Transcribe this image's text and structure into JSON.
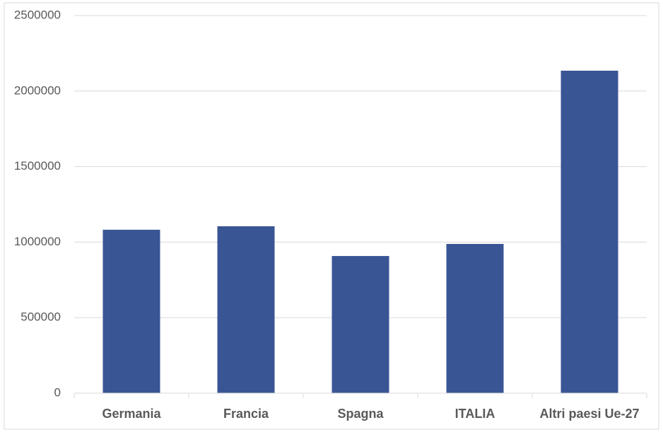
{
  "chart_data": {
    "type": "bar",
    "categories": [
      "Germania",
      "Francia",
      "Spagna",
      "ITALIA",
      "Altri paesi Ue-27"
    ],
    "values": [
      1082000,
      1105000,
      908000,
      988000,
      2135000
    ],
    "color": "#3a5594",
    "ylim": [
      0,
      2500000
    ],
    "yticks": [
      0,
      500000,
      1000000,
      1500000,
      2000000,
      2500000
    ],
    "grid": true
  }
}
